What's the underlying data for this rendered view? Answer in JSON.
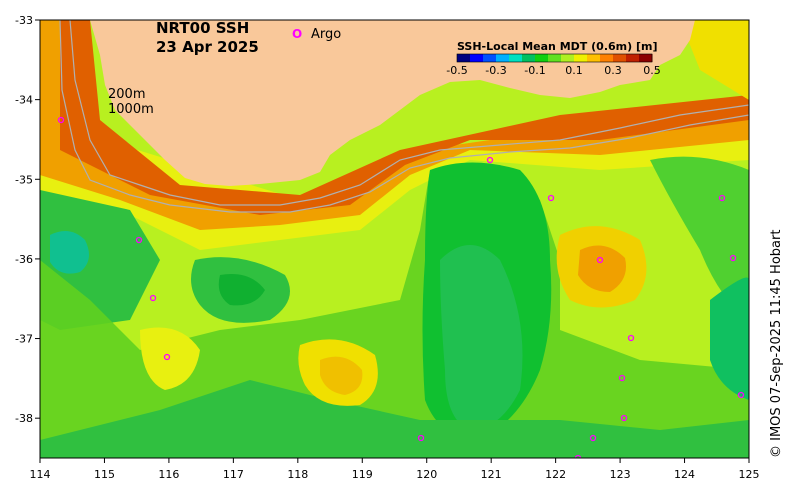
{
  "map": {
    "title": "NRT00 SSH",
    "date": "23 Apr 2025",
    "legend_marker": "O",
    "legend_label": "Argo",
    "legend_marker_color": "#ff00ff",
    "isobath_200": "200m",
    "isobath_1000": "1000m",
    "credit": "© IMOS 07-Sep-2025 11:45 Hobart",
    "land_color": "#f9c89a",
    "isobath_color": "#b0b0b0"
  },
  "colorbar": {
    "title": "SSH-Local Mean MDT (0.6m) [m]",
    "ticks": [
      "-0.5",
      "-0.3",
      "-0.1",
      "0.1",
      "0.3",
      "0.5"
    ],
    "colors": [
      "#00007f",
      "#0000ff",
      "#0050ff",
      "#00b0ff",
      "#00e0c0",
      "#00c060",
      "#10d010",
      "#60e020",
      "#b0f020",
      "#f0f000",
      "#ffc000",
      "#ff8000",
      "#e05000",
      "#c02000",
      "#8b0000"
    ]
  },
  "axes": {
    "x_ticks": [
      "114",
      "115",
      "116",
      "117",
      "118",
      "119",
      "120",
      "121",
      "122",
      "123",
      "124",
      "125"
    ],
    "y_ticks": [
      "-33",
      "-34",
      "-35",
      "-36",
      "-37",
      "-38"
    ],
    "lon_range": [
      114,
      125
    ],
    "lat_range": [
      -38.5,
      -33
    ]
  }
}
